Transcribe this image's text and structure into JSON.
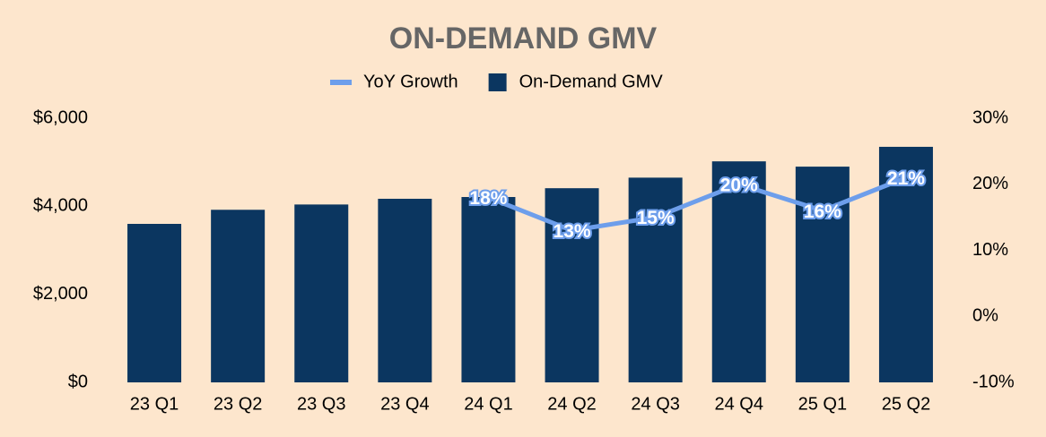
{
  "chart_data": {
    "type": "bar",
    "title": "ON-DEMAND GMV",
    "categories": [
      "23 Q1",
      "23 Q2",
      "23 Q3",
      "23 Q4",
      "24 Q1",
      "24 Q2",
      "24 Q3",
      "24 Q4",
      "25 Q1",
      "25 Q2"
    ],
    "series": [
      {
        "name": "YoY Growth",
        "type": "line",
        "axis": "y2",
        "color": "#6d9eeb",
        "values": [
          null,
          null,
          null,
          null,
          18,
          13,
          15,
          20,
          16,
          21
        ],
        "value_labels": [
          null,
          null,
          null,
          null,
          "18%",
          "13%",
          "15%",
          "20%",
          "16%",
          "21%"
        ]
      },
      {
        "name": "On-Demand GMV",
        "type": "bar",
        "color": "#0b3660",
        "values": [
          3600,
          3920,
          4040,
          4170,
          4210,
          4410,
          4650,
          5020,
          4900,
          5350
        ]
      }
    ],
    "ylim": [
      0,
      6000
    ],
    "yticks": [
      {
        "value": 0,
        "label": "$0"
      },
      {
        "value": 2000,
        "label": "$2,000"
      },
      {
        "value": 4000,
        "label": "$4,000"
      },
      {
        "value": 6000,
        "label": "$6,000"
      }
    ],
    "y2lim": [
      -10,
      30
    ],
    "y2ticks": [
      {
        "value": -10,
        "label": "-10%"
      },
      {
        "value": 0,
        "label": "0%"
      },
      {
        "value": 10,
        "label": "10%"
      },
      {
        "value": 20,
        "label": "20%"
      },
      {
        "value": 30,
        "label": "30%"
      }
    ],
    "grid": false,
    "legend": "top"
  }
}
